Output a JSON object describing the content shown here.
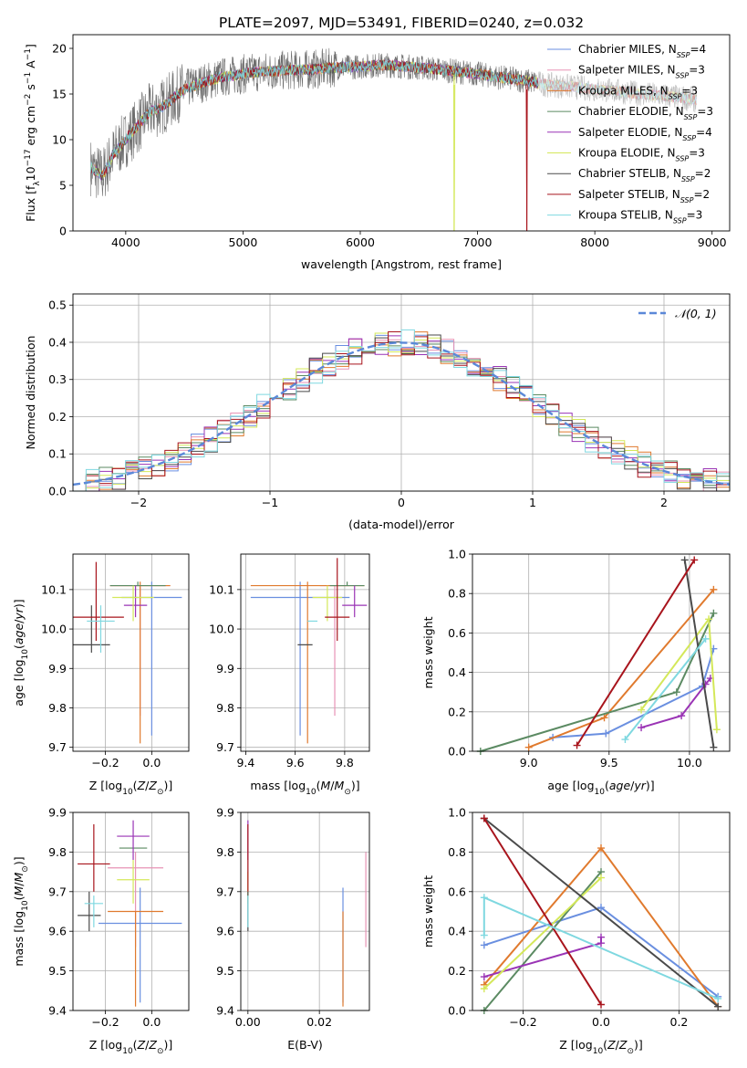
{
  "figure_title": "PLATE=2097, MJD=53491, FIBERID=0240, z=0.032",
  "model_colors": [
    "#6a8fe0",
    "#e793b5",
    "#e07a2e",
    "#5b8a62",
    "#9a34b5",
    "#d4e85a",
    "#4a4a4a",
    "#a8141c",
    "#7fd8e0"
  ],
  "chart_data": [
    {
      "id": "spectrum",
      "type": "line",
      "title": "PLATE=2097, MJD=53491, FIBERID=0240, z=0.032",
      "xlabel": "wavelength [Angstrom, rest frame]",
      "ylabel": "Flux [f_λ 10^-17 erg cm^-2 s^-1 A^-1]",
      "xlim": [
        3550,
        9150
      ],
      "ylim": [
        0,
        21.5
      ],
      "xticks": [
        "4000",
        "5000",
        "6000",
        "7000",
        "8000",
        "9000"
      ],
      "yticks": [
        "0",
        "5",
        "10",
        "15",
        "20"
      ],
      "grid": false,
      "legend_position": "upper right",
      "series": [
        {
          "name": "Chabrier MILES, N_SSP=4",
          "color": "#6a8fe0"
        },
        {
          "name": "Salpeter MILES, N_SSP=3",
          "color": "#e793b5"
        },
        {
          "name": "Kroupa MILES, N_SSP=3",
          "color": "#e07a2e"
        },
        {
          "name": "Chabrier ELODIE, N_SSP=3",
          "color": "#5b8a62"
        },
        {
          "name": "Salpeter ELODIE, N_SSP=4",
          "color": "#9a34b5"
        },
        {
          "name": "Kroupa ELODIE, N_SSP=3",
          "color": "#d4e85a"
        },
        {
          "name": "Chabrier STELIB, N_SSP=2",
          "color": "#4a4a4a"
        },
        {
          "name": "Salpeter STELIB, N_SSP=2",
          "color": "#a8141c"
        },
        {
          "name": "Kroupa STELIB, N_SSP=3",
          "color": "#7fd8e0"
        }
      ],
      "continuum": {
        "x": [
          3700,
          3800,
          3900,
          4000,
          4100,
          4200,
          4300,
          4400,
          4500,
          4600,
          4800,
          5000,
          5200,
          5400,
          5600,
          5800,
          6000,
          6200,
          6400,
          6600,
          6800,
          7000,
          7200,
          7400,
          7600,
          7800,
          8000,
          8200,
          8400,
          8600,
          8800,
          8870
        ],
        "y": [
          7,
          6,
          8.5,
          10,
          11.5,
          13,
          13.5,
          14.5,
          15.5,
          16,
          16.8,
          17.2,
          17.5,
          17.6,
          17.7,
          17.9,
          18,
          18.2,
          18,
          17.8,
          17.5,
          17.2,
          16.8,
          16.5,
          16,
          15.8,
          15.5,
          15.3,
          15,
          14.8,
          14.5,
          14.3
        ]
      },
      "drop_outs": [
        {
          "series": "Kroupa ELODIE, N_SSP=3",
          "x": 6800
        },
        {
          "series": "Salpeter STELIB, N_SSP=2",
          "x": 7420
        }
      ]
    },
    {
      "id": "residuals",
      "type": "histogram",
      "xlabel": "(data-model)/error",
      "ylabel": "Normed distribution",
      "xlim": [
        -2.5,
        2.5
      ],
      "ylim": [
        0,
        0.53
      ],
      "xticks": [
        "−2",
        "−1",
        "0",
        "1",
        "2"
      ],
      "yticks": [
        "0.0",
        "0.1",
        "0.2",
        "0.3",
        "0.4",
        "0.5"
      ],
      "grid": true,
      "legend_position": "upper right",
      "reference_curve": {
        "name": "𝒩(0, 1)",
        "color": "#5b88d8",
        "mu": 0,
        "sigma": 1
      },
      "bins": {
        "start": -2.5,
        "width": 0.1,
        "count": 50
      }
    },
    {
      "id": "age_vs_z",
      "type": "errorbar",
      "xlabel": "Z [log10(Z/Z☉)]",
      "ylabel": "age  [log10(age/yr)]",
      "xlim": [
        -0.34,
        0.16
      ],
      "ylim": [
        9.69,
        10.19
      ],
      "xticks": [
        "−0.2",
        "0.0"
      ],
      "yticks": [
        "9.7",
        "9.8",
        "9.9",
        "10.0",
        "10.1"
      ],
      "grid": true,
      "points": [
        {
          "x": 0.0,
          "xerr": 0.13,
          "y": 10.08,
          "yerr_low": 0.35,
          "yerr_high": 0.04,
          "color": "#6a8fe0"
        },
        {
          "x": -0.05,
          "xerr": 0.13,
          "y": 10.11,
          "yerr_low": 0.33,
          "yerr_high": 0.0,
          "color": "#e793b5"
        },
        {
          "x": -0.05,
          "xerr": 0.13,
          "y": 10.11,
          "yerr_low": 0.4,
          "yerr_high": 0.01,
          "color": "#e07a2e"
        },
        {
          "x": -0.06,
          "xerr": 0.12,
          "y": 10.11,
          "yerr_low": 0.0,
          "yerr_high": 0.01,
          "color": "#5b8a62"
        },
        {
          "x": -0.07,
          "xerr": 0.05,
          "y": 10.06,
          "yerr_low": 0.03,
          "yerr_high": 0.05,
          "color": "#9a34b5"
        },
        {
          "x": -0.08,
          "xerr": 0.09,
          "y": 10.08,
          "yerr_low": 0.06,
          "yerr_high": 0.03,
          "color": "#d4e85a"
        },
        {
          "x": -0.26,
          "xerr": 0.08,
          "y": 9.96,
          "yerr_low": 0.02,
          "yerr_high": 0.1,
          "color": "#4a4a4a"
        },
        {
          "x": -0.24,
          "xerr": 0.12,
          "y": 10.03,
          "yerr_low": 0.06,
          "yerr_high": 0.14,
          "color": "#a8141c"
        },
        {
          "x": -0.22,
          "xerr": 0.06,
          "y": 10.02,
          "yerr_low": 0.08,
          "yerr_high": 0.04,
          "color": "#7fd8e0"
        }
      ]
    },
    {
      "id": "age_vs_mass",
      "type": "errorbar",
      "xlabel": "mass [log10(M/M☉)]",
      "ylabel": "",
      "xlim": [
        9.38,
        9.9
      ],
      "ylim": [
        9.69,
        10.19
      ],
      "xticks": [
        "9.4",
        "9.6",
        "9.8"
      ],
      "yticks": [
        "9.7",
        "9.8",
        "9.9",
        "10.0",
        "10.1"
      ],
      "grid": true,
      "points": [
        {
          "x": 9.62,
          "xerr": 0.2,
          "y": 10.08,
          "yerr_low": 0.35,
          "yerr_high": 0.04,
          "color": "#6a8fe0"
        },
        {
          "x": 9.76,
          "xerr": 0.06,
          "y": 10.11,
          "yerr_low": 0.33,
          "yerr_high": 0.0,
          "color": "#e793b5"
        },
        {
          "x": 9.65,
          "xerr": 0.23,
          "y": 10.11,
          "yerr_low": 0.4,
          "yerr_high": 0.01,
          "color": "#e07a2e"
        },
        {
          "x": 9.81,
          "xerr": 0.07,
          "y": 10.11,
          "yerr_low": 0.0,
          "yerr_high": 0.01,
          "color": "#5b8a62"
        },
        {
          "x": 9.84,
          "xerr": 0.05,
          "y": 10.06,
          "yerr_low": 0.03,
          "yerr_high": 0.05,
          "color": "#9a34b5"
        },
        {
          "x": 9.73,
          "xerr": 0.06,
          "y": 10.08,
          "yerr_low": 0.06,
          "yerr_high": 0.03,
          "color": "#d4e85a"
        },
        {
          "x": 9.64,
          "xerr": 0.03,
          "y": 9.96,
          "yerr_low": 0.0,
          "yerr_high": 0.0,
          "color": "#4a4a4a"
        },
        {
          "x": 9.77,
          "xerr": 0.05,
          "y": 10.03,
          "yerr_low": 0.06,
          "yerr_high": 0.15,
          "color": "#a8141c"
        },
        {
          "x": 9.67,
          "xerr": 0.02,
          "y": 10.02,
          "yerr_low": 0.0,
          "yerr_high": 0.0,
          "color": "#7fd8e0"
        }
      ]
    },
    {
      "id": "weight_vs_age",
      "type": "line",
      "xlabel": "age  [log10(age/yr)]",
      "ylabel": "mass weight",
      "xlim": [
        8.65,
        10.25
      ],
      "ylim": [
        0,
        1
      ],
      "xticks": [
        "9.0",
        "9.5",
        "10.0"
      ],
      "yticks": [
        "0.0",
        "0.2",
        "0.4",
        "0.6",
        "0.8",
        "1.0"
      ],
      "grid": true,
      "series": [
        {
          "color": "#6a8fe0",
          "x": [
            9.15,
            9.48,
            10.08,
            10.15
          ],
          "y": [
            0.07,
            0.09,
            0.33,
            0.52
          ]
        },
        {
          "color": "#e07a2e",
          "x": [
            9.0,
            9.47,
            10.15
          ],
          "y": [
            0.02,
            0.17,
            0.82
          ]
        },
        {
          "color": "#5b8a62",
          "x": [
            8.7,
            9.92,
            10.15
          ],
          "y": [
            0.0,
            0.3,
            0.7
          ]
        },
        {
          "color": "#9a34b5",
          "x": [
            9.7,
            9.95,
            10.1,
            10.13
          ],
          "y": [
            0.12,
            0.18,
            0.34,
            0.37
          ]
        },
        {
          "color": "#d4e85a",
          "x": [
            9.7,
            10.12,
            10.17
          ],
          "y": [
            0.21,
            0.67,
            0.11
          ]
        },
        {
          "color": "#4a4a4a",
          "x": [
            9.97,
            10.15
          ],
          "y": [
            0.97,
            0.02
          ]
        },
        {
          "color": "#a8141c",
          "x": [
            9.3,
            10.03
          ],
          "y": [
            0.03,
            0.97
          ]
        },
        {
          "color": "#7fd8e0",
          "x": [
            9.6,
            10.1
          ],
          "y": [
            0.06,
            0.57
          ]
        }
      ]
    },
    {
      "id": "mass_vs_z",
      "type": "errorbar",
      "xlabel": "Z [log10(Z/Z☉)]",
      "ylabel": "mass [log10(M/M☉)]",
      "xlim": [
        -0.34,
        0.16
      ],
      "ylim": [
        9.4,
        9.9
      ],
      "xticks": [
        "−0.2",
        "0.0"
      ],
      "yticks": [
        "9.4",
        "9.5",
        "9.6",
        "9.7",
        "9.8",
        "9.9"
      ],
      "grid": true,
      "points": [
        {
          "x": -0.05,
          "xerr": 0.18,
          "y": 9.62,
          "yerr_low": 0.2,
          "yerr_high": 0.09,
          "color": "#6a8fe0"
        },
        {
          "x": -0.07,
          "xerr": 0.12,
          "y": 9.76,
          "yerr_low": 0.2,
          "yerr_high": 0.04,
          "color": "#e793b5"
        },
        {
          "x": -0.07,
          "xerr": 0.12,
          "y": 9.65,
          "yerr_low": 0.24,
          "yerr_high": 0.0,
          "color": "#e07a2e"
        },
        {
          "x": -0.08,
          "xerr": 0.06,
          "y": 9.81,
          "yerr_low": 0.0,
          "yerr_high": 0.0,
          "color": "#5b8a62"
        },
        {
          "x": -0.08,
          "xerr": 0.07,
          "y": 9.84,
          "yerr_low": 0.06,
          "yerr_high": 0.04,
          "color": "#9a34b5"
        },
        {
          "x": -0.08,
          "xerr": 0.07,
          "y": 9.73,
          "yerr_low": 0.06,
          "yerr_high": 0.05,
          "color": "#d4e85a"
        },
        {
          "x": -0.27,
          "xerr": 0.05,
          "y": 9.64,
          "yerr_low": 0.04,
          "yerr_high": 0.06,
          "color": "#4a4a4a"
        },
        {
          "x": -0.25,
          "xerr": 0.07,
          "y": 9.77,
          "yerr_low": 0.07,
          "yerr_high": 0.1,
          "color": "#a8141c"
        },
        {
          "x": -0.25,
          "xerr": 0.04,
          "y": 9.67,
          "yerr_low": 0.06,
          "yerr_high": 0.02,
          "color": "#7fd8e0"
        }
      ]
    },
    {
      "id": "mass_vs_ebv",
      "type": "errorbar",
      "xlabel": "E(B-V)",
      "ylabel": "",
      "xlim": [
        -0.002,
        0.034
      ],
      "ylim": [
        9.4,
        9.9
      ],
      "xticks": [
        "0.00",
        "0.02"
      ],
      "yticks": [
        "9.4",
        "9.5",
        "9.6",
        "9.7",
        "9.8",
        "9.9"
      ],
      "grid": true,
      "points": [
        {
          "x": 0.0266,
          "xerr": 0,
          "y": 9.62,
          "yerr_low": 0.2,
          "yerr_high": 0.09,
          "color": "#6a8fe0"
        },
        {
          "x": 0.033,
          "xerr": 0,
          "y": 9.76,
          "yerr_low": 0.2,
          "yerr_high": 0.04,
          "color": "#e793b5"
        },
        {
          "x": 0.0266,
          "xerr": 0,
          "y": 9.65,
          "yerr_low": 0.24,
          "yerr_high": 0.0,
          "color": "#e07a2e"
        },
        {
          "x": 0.0,
          "xerr": 0,
          "y": 9.81,
          "yerr_low": 0.0,
          "yerr_high": 0.0,
          "color": "#5b8a62"
        },
        {
          "x": 0.0,
          "xerr": 0,
          "y": 9.84,
          "yerr_low": 0.06,
          "yerr_high": 0.04,
          "color": "#9a34b5"
        },
        {
          "x": 0.0,
          "xerr": 0,
          "y": 9.73,
          "yerr_low": 0.06,
          "yerr_high": 0.02,
          "color": "#d4e85a"
        },
        {
          "x": 0.0,
          "xerr": 0,
          "y": 9.64,
          "yerr_low": 0.04,
          "yerr_high": 0.06,
          "color": "#4a4a4a"
        },
        {
          "x": 0.0,
          "xerr": 0,
          "y": 9.77,
          "yerr_low": 0.07,
          "yerr_high": 0.1,
          "color": "#a8141c"
        },
        {
          "x": 0.0,
          "xerr": 0,
          "y": 9.67,
          "yerr_low": 0.06,
          "yerr_high": 0.02,
          "color": "#7fd8e0"
        }
      ]
    },
    {
      "id": "weight_vs_z",
      "type": "line",
      "xlabel": "Z [log10(Z/Z☉)]",
      "ylabel": "mass weight",
      "xlim": [
        -0.33,
        0.33
      ],
      "ylim": [
        0,
        1
      ],
      "xticks": [
        "−0.2",
        "0.0",
        "0.2"
      ],
      "yticks": [
        "0.0",
        "0.2",
        "0.4",
        "0.6",
        "0.8",
        "1.0"
      ],
      "grid": true,
      "series": [
        {
          "color": "#6a8fe0",
          "x": [
            -0.3,
            0.0,
            0.3
          ],
          "y": [
            0.33,
            0.52,
            0.07
          ]
        },
        {
          "color": "#e07a2e",
          "x": [
            -0.3,
            0.0,
            0.3
          ],
          "y": [
            0.13,
            0.82,
            0.02
          ]
        },
        {
          "color": "#5b8a62",
          "x": [
            -0.3,
            0.0
          ],
          "y": [
            0.0,
            0.7
          ]
        },
        {
          "color": "#9a34b5",
          "x": [
            -0.3,
            0.0,
            0.0
          ],
          "y": [
            0.17,
            0.34,
            0.37
          ]
        },
        {
          "color": "#d4e85a",
          "x": [
            -0.3,
            0.0
          ],
          "y": [
            0.11,
            0.67
          ]
        },
        {
          "color": "#4a4a4a",
          "x": [
            -0.3,
            0.3
          ],
          "y": [
            0.97,
            0.02
          ]
        },
        {
          "color": "#a8141c",
          "x": [
            -0.3,
            0.0
          ],
          "y": [
            0.97,
            0.03
          ]
        },
        {
          "color": "#7fd8e0",
          "x": [
            -0.3,
            -0.3,
            0.3
          ],
          "y": [
            0.38,
            0.57,
            0.06
          ]
        }
      ]
    }
  ]
}
